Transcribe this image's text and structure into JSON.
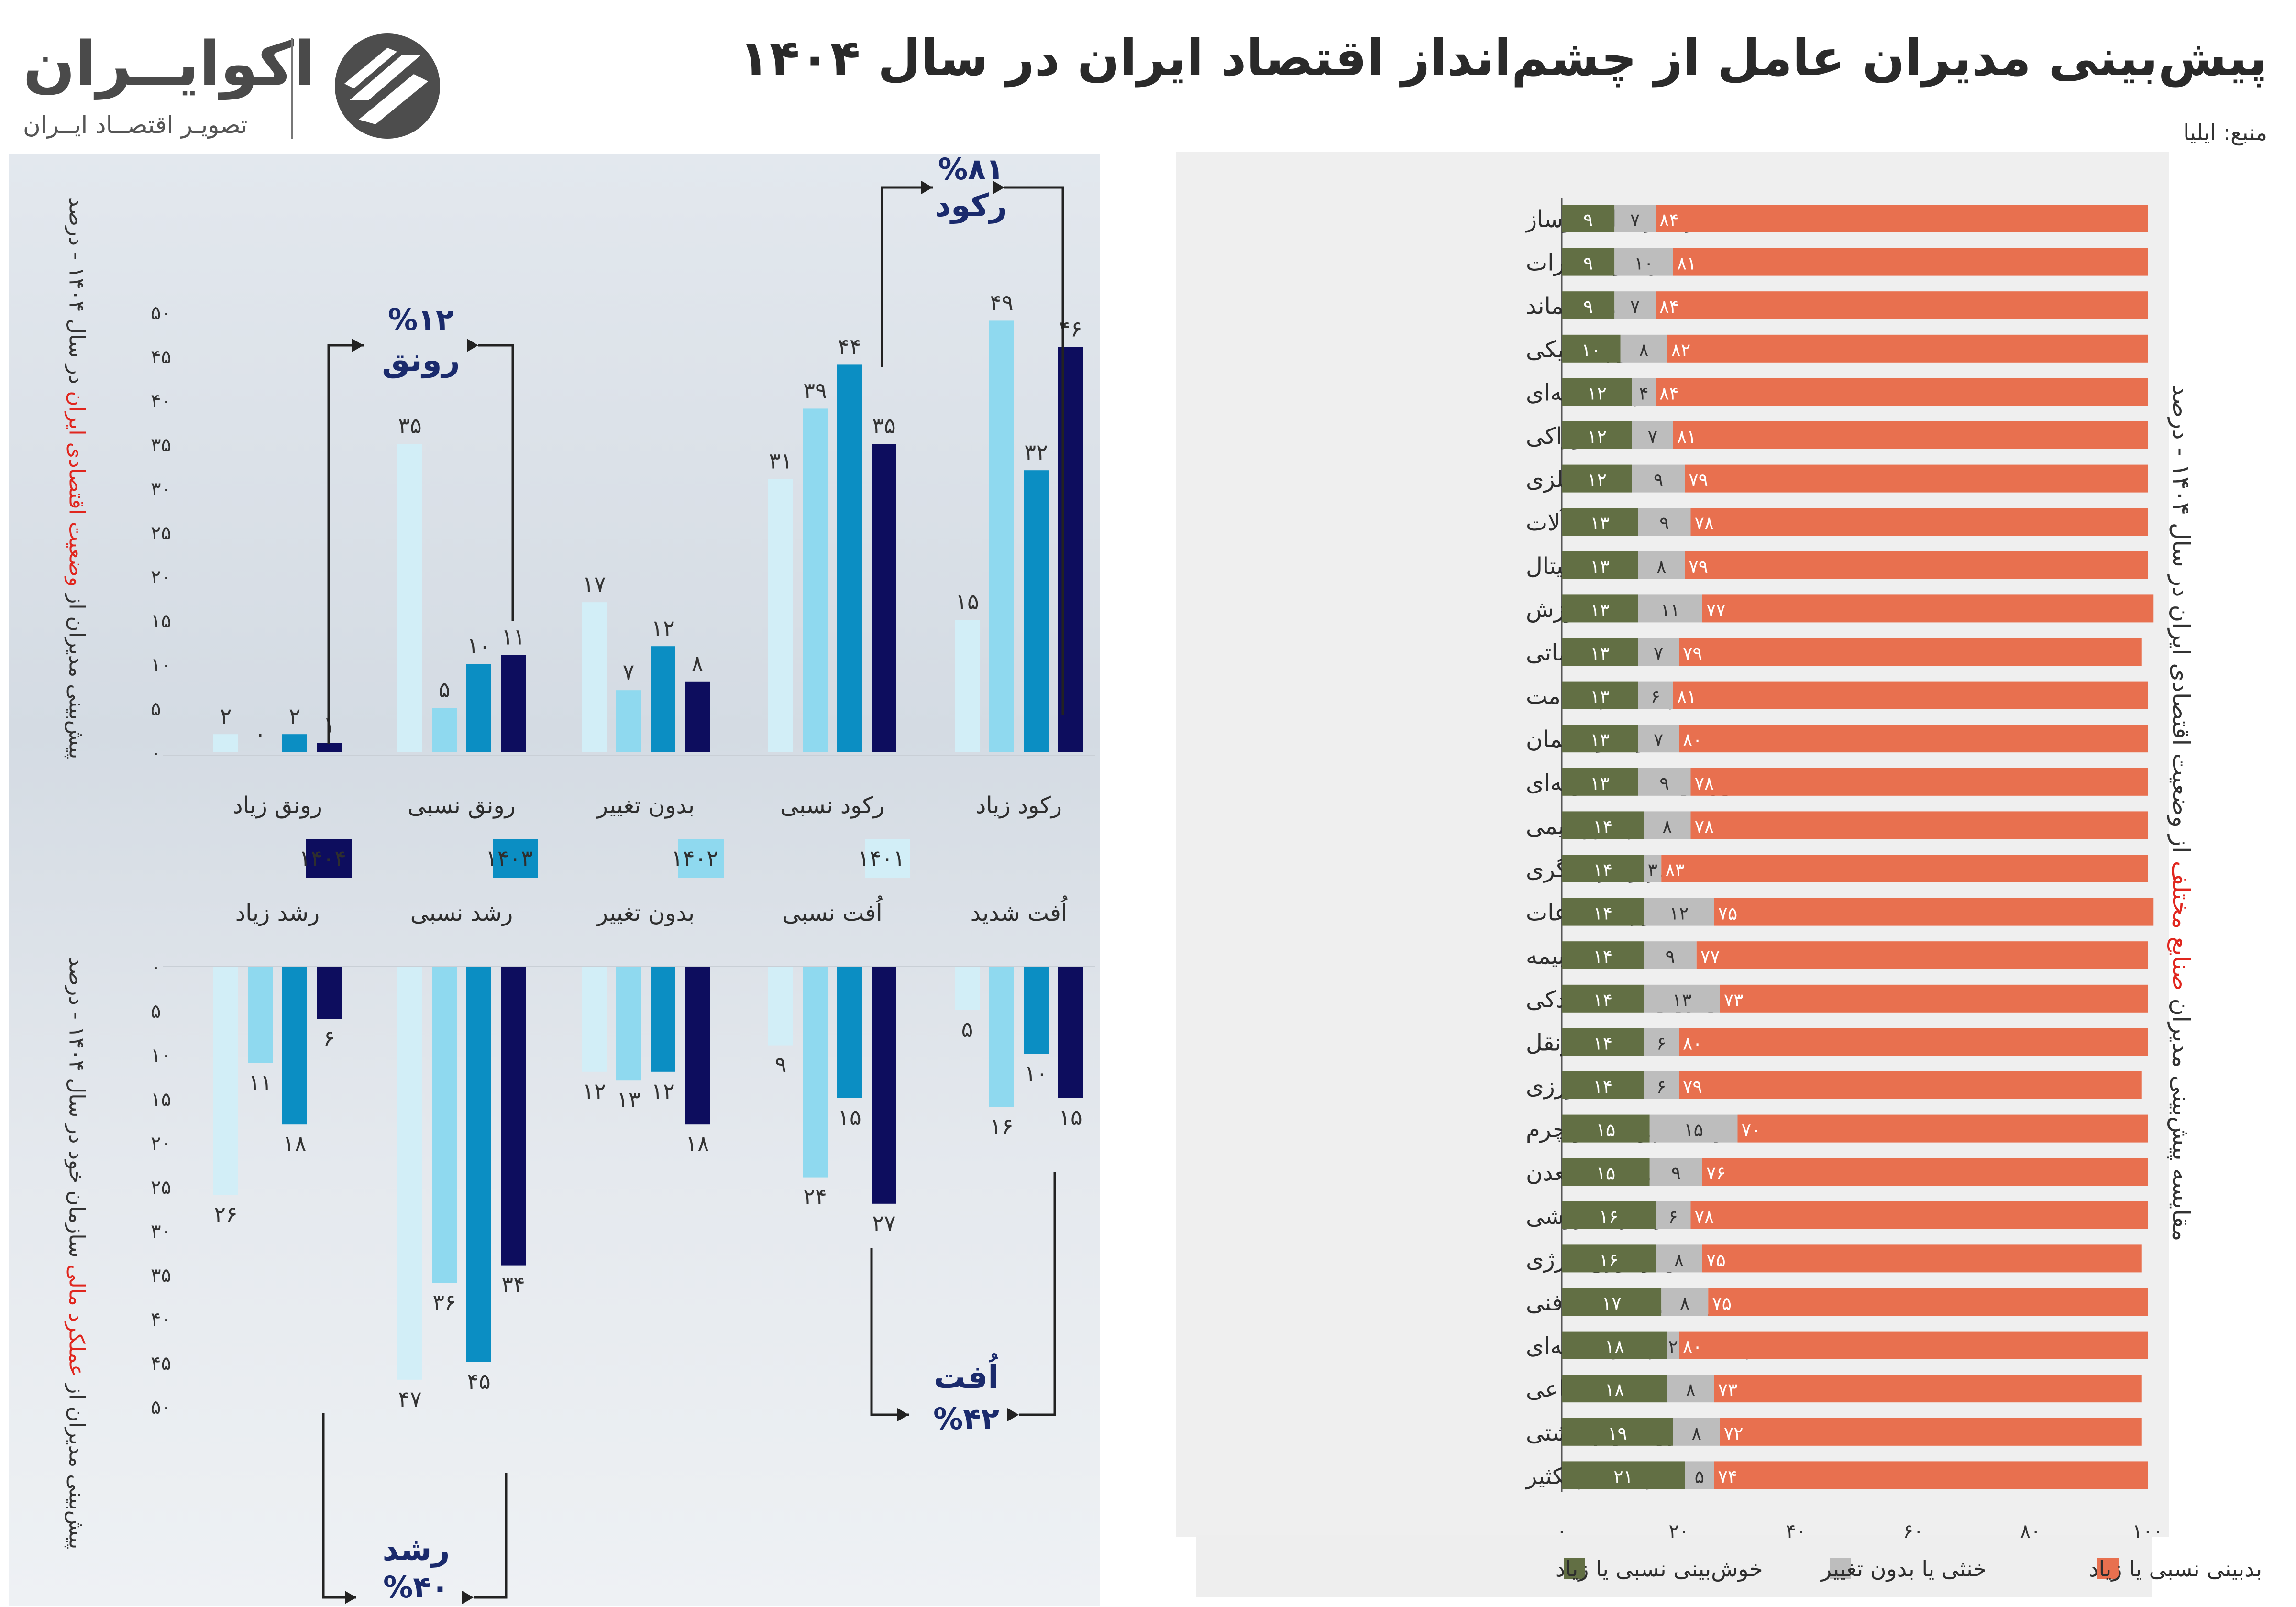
{
  "header": {
    "title": "پیش‌بینی مدیران عامل از چشم‌انداز اقتصاد ایران در سال ۱۴۰۴",
    "source": "منبع: ایلیا"
  },
  "brand": {
    "name": "اکوایــران",
    "tagline": "تصویـر اقتصــاد ایــران",
    "logo_icon": "ecoiran-logo-icon"
  },
  "colors": {
    "y1401": "#d2eef7",
    "y1402": "#8fd9ef",
    "y1403": "#0b8ec3",
    "y1404": "#0d0d5e",
    "pessimistic": "#e8704f",
    "neutral": "#bdbdbd",
    "optimistic": "#626f44",
    "highlight": "#e0261e",
    "annotation": "#1a2a6c"
  },
  "left_axis_titles": {
    "top": {
      "prefix": "پیش‌بینی مدیران از ",
      "highlight": "وضعیت اقتصادی ایران",
      "suffix": " در سال ۱۴۰۴ - درصد"
    },
    "bottom": {
      "prefix": "پیش‌بینی مدیران از ",
      "highlight": "عملکرد مالی",
      "suffix": " سازمان خود در سال ۱۴۰۴ - درصد"
    }
  },
  "chart_data": [
    {
      "type": "bar",
      "title": "پیش‌بینی مدیران از وضعیت اقتصادی ایران در سال ۱۴۰۴ - درصد",
      "categories": [
        "رکود زیاد",
        "رکود نسبی",
        "بدون تغییر",
        "رونق نسبی",
        "رونق زیاد"
      ],
      "series": [
        {
          "name": "۱۴۰۱",
          "values": [
            15,
            31,
            17,
            35,
            2
          ],
          "labels": [
            "۱۵",
            "۳۱",
            "۱۷",
            "۳۵",
            "۲"
          ]
        },
        {
          "name": "۱۴۰۲",
          "values": [
            49,
            39,
            7,
            5,
            0
          ],
          "labels": [
            "۴۹",
            "۳۹",
            "۷",
            "۵",
            "۰"
          ]
        },
        {
          "name": "۱۴۰۳",
          "values": [
            32,
            44,
            12,
            10,
            2
          ],
          "labels": [
            "۳۲",
            "۴۴",
            "۱۲",
            "۱۰",
            "۲"
          ]
        },
        {
          "name": "۱۴۰۴",
          "values": [
            46,
            35,
            8,
            11,
            1
          ],
          "labels": [
            "۴۶",
            "۳۵",
            "۸",
            "۱۱",
            "۱"
          ]
        }
      ],
      "ylim": [
        0,
        50
      ],
      "yticks": [
        "۰",
        "۵",
        "۱۰",
        "۱۵",
        "۲۰",
        "۲۵",
        "۳۰",
        "۳۵",
        "۴۰",
        "۴۵",
        "۵۰"
      ],
      "annotations": [
        {
          "label": "رکود",
          "value": "%۸۱"
        },
        {
          "label": "رونق",
          "value": "%۱۲"
        }
      ]
    },
    {
      "type": "bar",
      "title": "پیش‌بینی مدیران از عملکرد مالی سازمان خود در سال ۱۴۰۴ - درصد",
      "categories": [
        "اُفت شدید",
        "اُفت نسبی",
        "بدون تغییر",
        "رشد نسبی",
        "رشد زیاد"
      ],
      "series": [
        {
          "name": "۱۴۰۱",
          "values": [
            5,
            9,
            12,
            47,
            26
          ],
          "labels": [
            "۵",
            "۹",
            "۱۲",
            "۴۷",
            "۲۶"
          ]
        },
        {
          "name": "۱۴۰۲",
          "values": [
            16,
            24,
            13,
            36,
            11
          ],
          "labels": [
            "۱۶",
            "۲۴",
            "۱۳",
            "۳۶",
            "۱۱"
          ]
        },
        {
          "name": "۱۴۰۳",
          "values": [
            10,
            15,
            12,
            45,
            18
          ],
          "labels": [
            "۱۰",
            "۱۵",
            "۱۲",
            "۴۵",
            "۱۸"
          ]
        },
        {
          "name": "۱۴۰۴",
          "values": [
            15,
            27,
            18,
            34,
            6
          ],
          "labels": [
            "۱۵",
            "۲۷",
            "۱۸",
            "۳۴",
            "۶"
          ]
        }
      ],
      "ylim": [
        0,
        50
      ],
      "yticks": [
        "۰",
        "۵",
        "۱۰",
        "۱۵",
        "۲۰",
        "۲۵",
        "۳۰",
        "۳۵",
        "۴۰",
        "۴۵",
        "۵۰"
      ],
      "annotations": [
        {
          "label": "اُفت",
          "value": "%۴۲"
        },
        {
          "label": "رشد",
          "value": "%۴۰"
        }
      ]
    },
    {
      "type": "bar",
      "orientation": "horizontal",
      "stacked": true,
      "title": "مقایسه پیش‌بینی مدیران صنایع مختلف از وضعیت اقتصادی ایران در سال ۱۴۰۴ - درصد",
      "title_parts": {
        "prefix": "مقایسه پیش‌بینی مدیران ",
        "highlight": "صنایع مختلف",
        "suffix": " از وضعیت اقتصادی ایران در سال ۱۴۰۴ - درصد"
      },
      "categories": [
        "عمران و ساخت‌وساز",
        "برق و مخابرات",
        "آب و مدیریت پسماند",
        "شیمیایی و پلاستیکی",
        "تجهیزات یارانه‌ای",
        "خوراکی",
        "فلزی",
        "ماشین‌آلات",
        "اقتصاد دیجیتال",
        "آموزش",
        "فعالیت‌های اداری، خدماتی",
        "پزشکی و سلامت",
        "چوب و مبلمان",
        "مشاوره و خدمات حرفه‌ای",
        "نفت، گاز و پتروشیمی",
        "سفر و گردشگری",
        "فناوری اطلاعات",
        "مالی و بیمه",
        "خودرو و قطعات یدکی",
        "حمل‌ونقل",
        "کشاورزی",
        "منسوجات، پوشاک و چرم",
        "استخراج معدن",
        "عمده و خرده‌فروشی",
        "تامین و توزیع انرژی",
        "خدمات پژوهشی، علمی و فنی",
        "فرهنگی، هنری و رسانه‌ای",
        "خدمات اجتماعی",
        "دارویی و بهداشتی",
        "کاغذ و چاپ و تکثیر"
      ],
      "series": [
        {
          "name": "خوش‌بینی نسبی یا زیاد",
          "values": [
            9,
            9,
            9,
            10,
            12,
            12,
            12,
            13,
            13,
            13,
            13,
            13,
            13,
            13,
            14,
            14,
            14,
            14,
            14,
            14,
            14,
            15,
            15,
            16,
            16,
            17,
            18,
            18,
            19,
            21
          ],
          "labels": [
            "۹",
            "۹",
            "۹",
            "۱۰",
            "۱۲",
            "۱۲",
            "۱۲",
            "۱۳",
            "۱۳",
            "۱۳",
            "۱۳",
            "۱۳",
            "۱۳",
            "۱۳",
            "۱۴",
            "۱۴",
            "۱۴",
            "۱۴",
            "۱۴",
            "۱۴",
            "۱۴",
            "۱۵",
            "۱۵",
            "۱۶",
            "۱۶",
            "۱۷",
            "۱۸",
            "۱۸",
            "۱۹",
            "۲۱"
          ]
        },
        {
          "name": "خنثی یا بدون تغییر",
          "values": [
            7,
            10,
            7,
            8,
            4,
            7,
            9,
            9,
            8,
            11,
            7,
            6,
            7,
            9,
            8,
            3,
            12,
            9,
            13,
            6,
            6,
            15,
            9,
            6,
            8,
            8,
            2,
            8,
            8,
            5
          ],
          "labels": [
            "۷",
            "۱۰",
            "۷",
            "۸",
            "۴",
            "۷",
            "۹",
            "۹",
            "۸",
            "۱۱",
            "۷",
            "۶",
            "۷",
            "۹",
            "۸",
            "۳",
            "۱۲",
            "۹",
            "۱۳",
            "۶",
            "۶",
            "۱۵",
            "۹",
            "۶",
            "۸",
            "۸",
            "۲",
            "۸",
            "۸",
            "۵"
          ]
        },
        {
          "name": "بدبینی نسبی یا زیاد",
          "values": [
            84,
            81,
            84,
            82,
            84,
            81,
            79,
            78,
            79,
            77,
            79,
            81,
            80,
            78,
            78,
            83,
            75,
            77,
            73,
            80,
            79,
            70,
            76,
            78,
            75,
            75,
            80,
            73,
            72,
            74
          ],
          "labels": [
            "۸۴",
            "۸۱",
            "۸۴",
            "۸۲",
            "۸۴",
            "۸۱",
            "۷۹",
            "۷۸",
            "۷۹",
            "۷۷",
            "۷۹",
            "۸۱",
            "۸۰",
            "۷۸",
            "۷۸",
            "۸۳",
            "۷۵",
            "۷۷",
            "۷۳",
            "۸۰",
            "۷۹",
            "۷۰",
            "۷۶",
            "۷۸",
            "۷۵",
            "۷۵",
            "۸۰",
            "۷۳",
            "۷۲",
            "۷۴"
          ]
        }
      ],
      "xlim": [
        0,
        100
      ],
      "xticks": [
        "۰",
        "۲۰",
        "۴۰",
        "۶۰",
        "۸۰",
        "۱۰۰"
      ],
      "legend": [
        "بدبینی نسبی یا زیاد",
        "خنثی یا بدون تغییر",
        "خوش‌بینی نسبی یا زیاد"
      ]
    }
  ]
}
